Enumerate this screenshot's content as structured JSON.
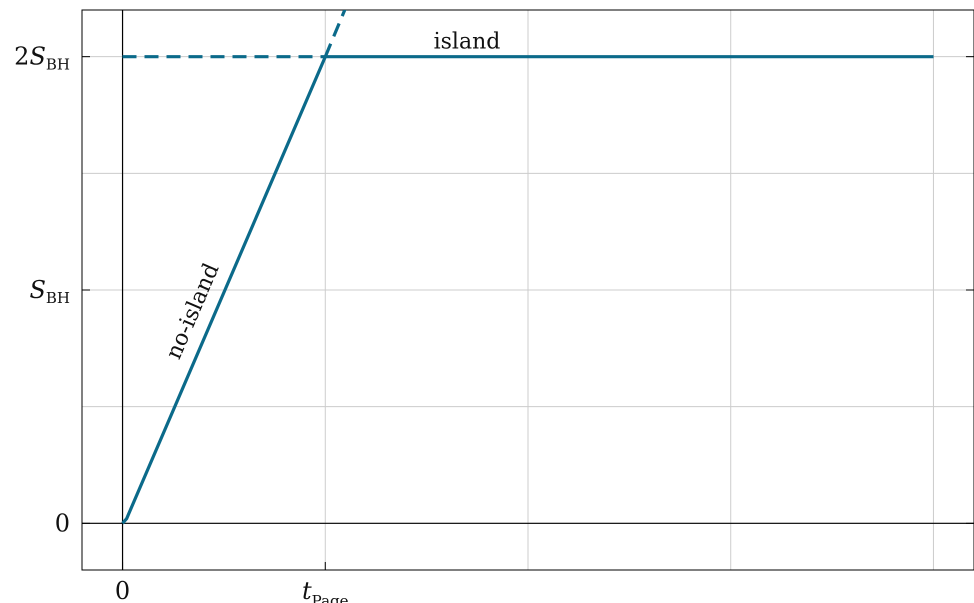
{
  "chart_data": {
    "type": "line",
    "title": "",
    "xlabel": "",
    "ylabel": "",
    "x_ticks": [
      {
        "value": 0,
        "label": "0"
      },
      {
        "value": 1,
        "label": "t",
        "sub": "Page"
      }
    ],
    "y_ticks": [
      {
        "value": 0,
        "label": "0"
      },
      {
        "value": 1,
        "label": "S",
        "sub": "BH"
      },
      {
        "value": 2,
        "label": "2S",
        "sub": "BH"
      }
    ],
    "xlim": [
      -0.2,
      4.2
    ],
    "ylim": [
      -0.2,
      2.2
    ],
    "grid": true,
    "colors": {
      "series": "#0b6a8a",
      "grid": "#cccccc",
      "axes": "#000000"
    },
    "series": [
      {
        "name": "no-island",
        "style": "solid",
        "x": [
          0,
          0.02,
          1.0
        ],
        "y": [
          0,
          0.02,
          2.0
        ]
      },
      {
        "name": "",
        "style": "dashed",
        "x": [
          1.0,
          1.12
        ],
        "y": [
          2.0,
          2.25
        ]
      },
      {
        "name": "",
        "style": "dashed",
        "x": [
          0,
          1.0
        ],
        "y": [
          2.0,
          2.0
        ]
      },
      {
        "name": "island",
        "style": "solid",
        "x": [
          1.0,
          4.0
        ],
        "y": [
          2.0,
          2.0
        ]
      }
    ],
    "annotations": [
      {
        "text": "island",
        "series": "island"
      },
      {
        "text": "no-island",
        "series": "no-island"
      }
    ]
  }
}
